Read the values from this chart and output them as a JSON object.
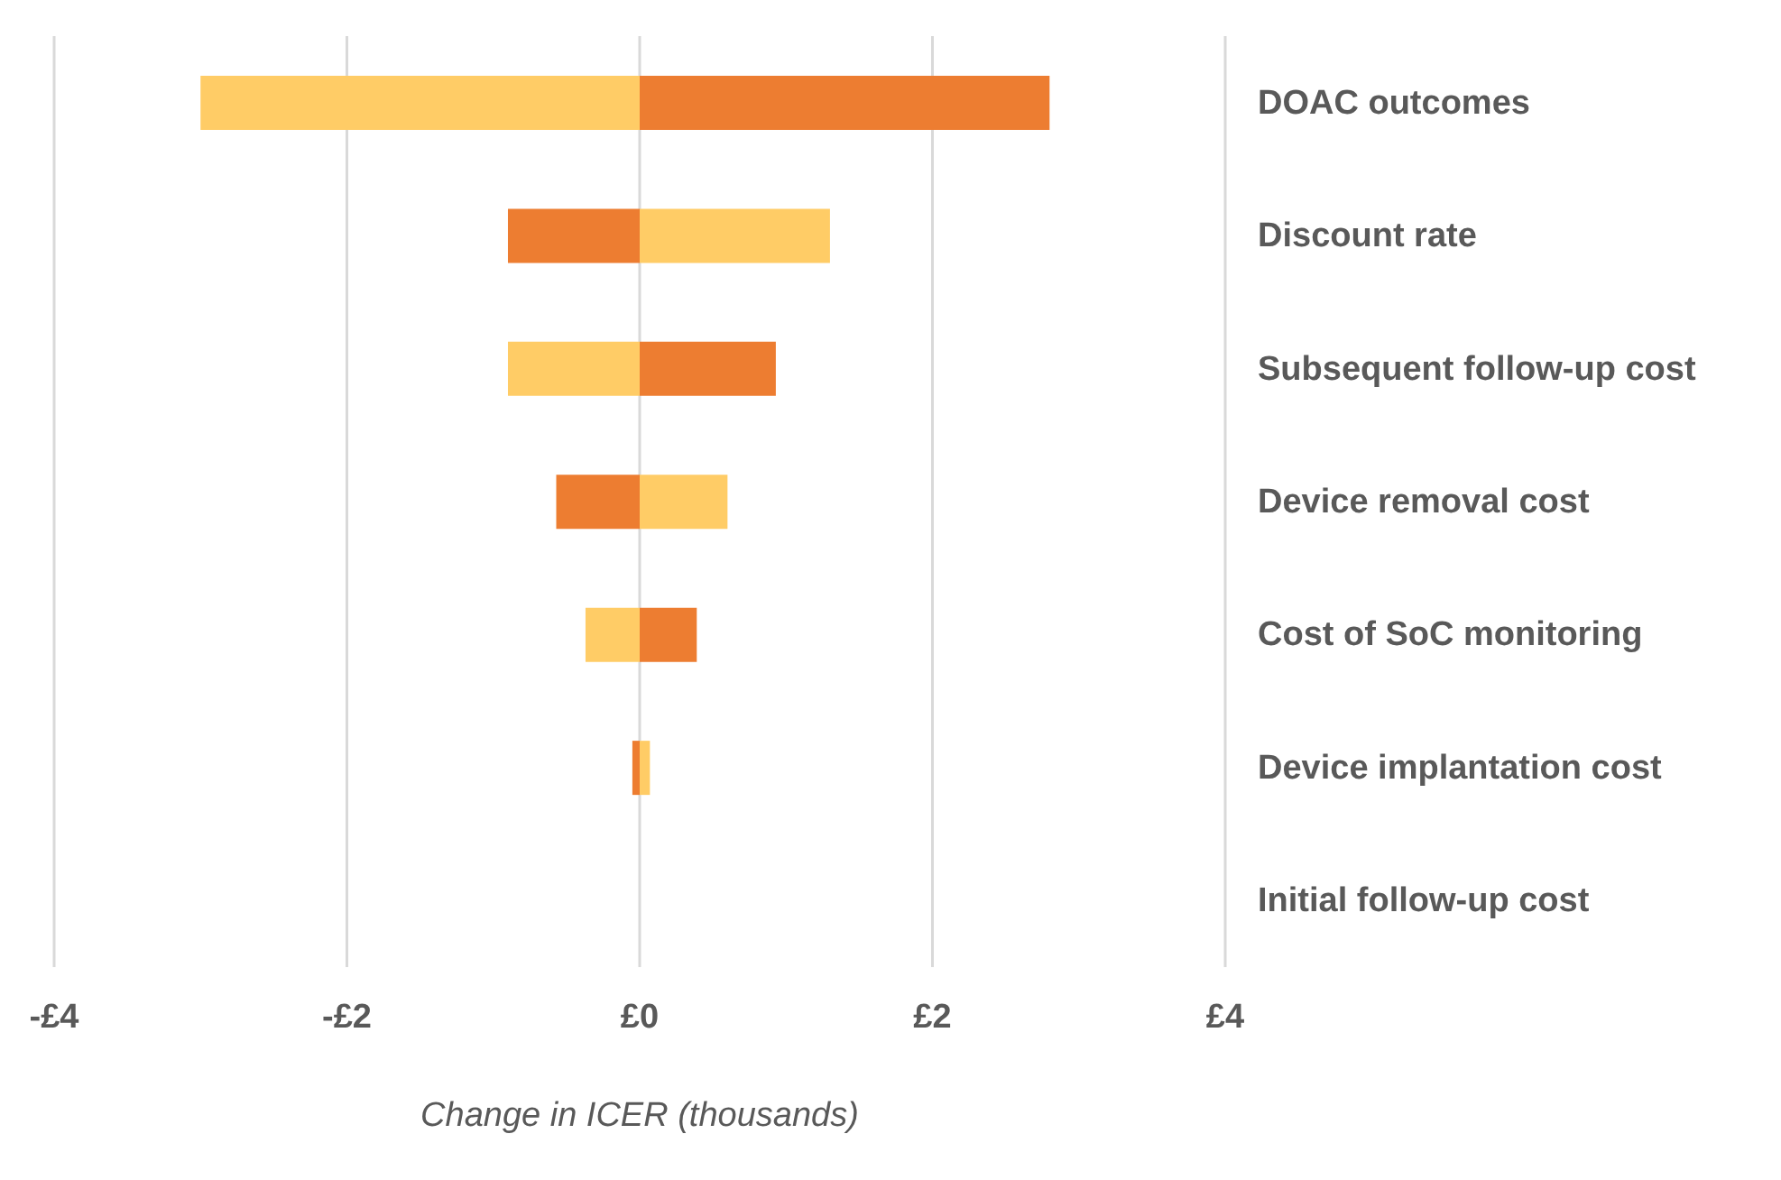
{
  "chart_data": {
    "type": "bar",
    "orientation": "horizontal",
    "stacked": true,
    "xlabel": "Change in ICER (thousands)",
    "categories": [
      "DOAC outcomes",
      "Discount rate",
      "Subsequent follow-up cost",
      "Device removal cost",
      "Cost of SoC monitoring",
      "Device implantation cost",
      "Initial follow-up cost"
    ],
    "series": [
      {
        "color": "#ffcc66",
        "values": [
          -3.0,
          1.3,
          -0.9,
          0.6,
          -0.37,
          0.07,
          0
        ]
      },
      {
        "color": "#ed7d31",
        "values": [
          2.8,
          -0.9,
          0.93,
          -0.57,
          0.39,
          -0.05,
          0
        ]
      }
    ],
    "xlim": [
      -4,
      4
    ],
    "xticks": [
      {
        "value": -4,
        "label": "-£4"
      },
      {
        "value": -2,
        "label": "-£2"
      },
      {
        "value": 0,
        "label": "£0"
      },
      {
        "value": 2,
        "label": "£2"
      },
      {
        "value": 4,
        "label": "£4"
      }
    ],
    "grid": "x"
  }
}
